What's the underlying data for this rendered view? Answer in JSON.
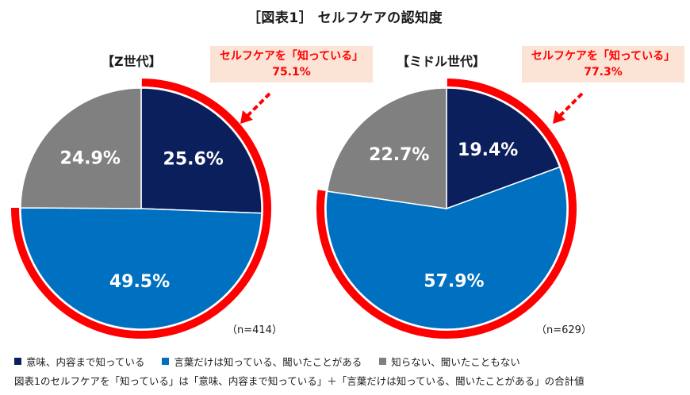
{
  "title": "［図表1］ セルフケアの認知度",
  "colors": {
    "navy": "#0b1f5c",
    "blue": "#0070c0",
    "gray": "#808080",
    "ring": "#ff0000",
    "callout_bg": "#fbe4d5"
  },
  "chart_data": [
    {
      "type": "pie",
      "label": "【Z世代】",
      "n": "（n=414）",
      "callout": {
        "line1": "セルフケアを「知っている」",
        "line2": "75.1%"
      },
      "slices": [
        {
          "name": "意味、内容まで知っている",
          "value": 25.6,
          "label": "25.6%",
          "color": "#0b1f5c"
        },
        {
          "name": "言葉だけは知っている、聞いたことがある",
          "value": 49.5,
          "label": "49.5%",
          "color": "#0070c0"
        },
        {
          "name": "知らない、聞いたこともない",
          "value": 24.9,
          "label": "24.9%",
          "color": "#808080"
        }
      ],
      "known_total": 75.1
    },
    {
      "type": "pie",
      "label": "【ミドル世代】",
      "n": "（n=629）",
      "callout": {
        "line1": "セルフケアを「知っている」",
        "line2": "77.3%"
      },
      "slices": [
        {
          "name": "意味、内容まで知っている",
          "value": 19.4,
          "label": "19.4%",
          "color": "#0b1f5c"
        },
        {
          "name": "言葉だけは知っている、聞いたことがある",
          "value": 57.9,
          "label": "57.9%",
          "color": "#0070c0"
        },
        {
          "name": "知らない、聞いたこともない",
          "value": 22.7,
          "label": "22.7%",
          "color": "#808080"
        }
      ],
      "known_total": 77.3
    }
  ],
  "legend": [
    {
      "label": "意味、内容まで知っている",
      "color": "#0b1f5c"
    },
    {
      "label": "言葉だけは知っている、聞いたことがある",
      "color": "#0070c0"
    },
    {
      "label": "知らない、聞いたこともない",
      "color": "#808080"
    }
  ],
  "footnote": "図表1のセルフケアを「知っている」は「意味、内容まで知っている」＋「言葉だけは知っている、聞いたことがある」の合計値"
}
